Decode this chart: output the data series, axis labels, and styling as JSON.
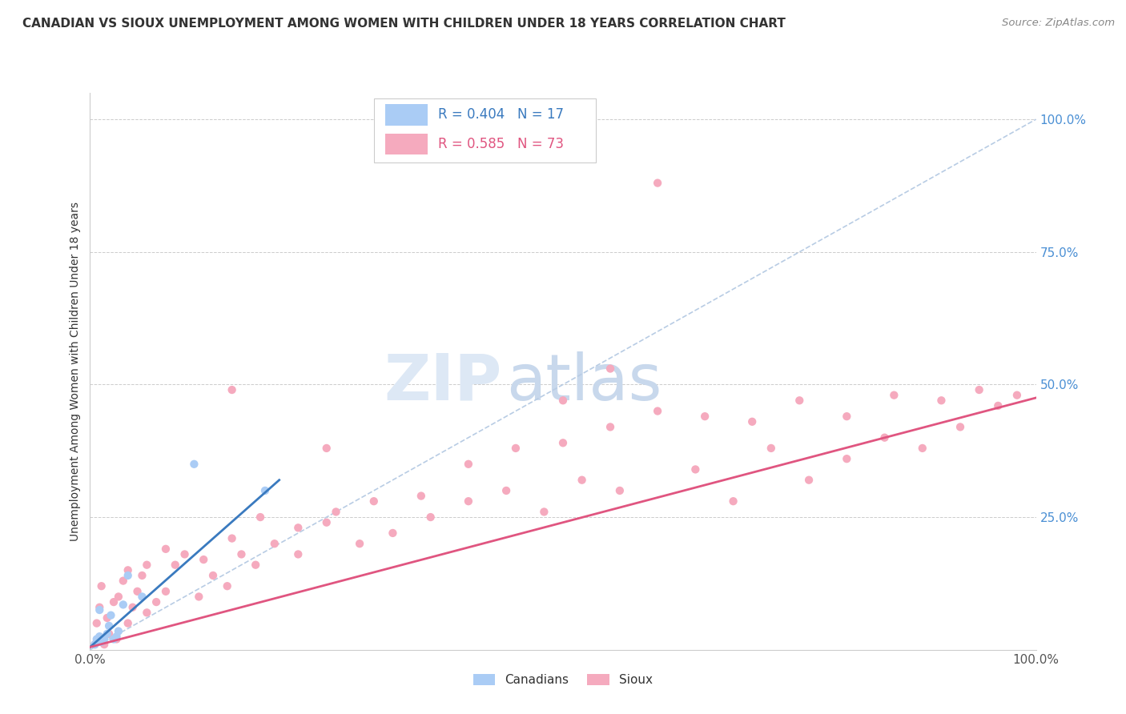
{
  "title": "CANADIAN VS SIOUX UNEMPLOYMENT AMONG WOMEN WITH CHILDREN UNDER 18 YEARS CORRELATION CHART",
  "source": "Source: ZipAtlas.com",
  "ylabel": "Unemployment Among Women with Children Under 18 years",
  "xlim": [
    0.0,
    1.0
  ],
  "ylim": [
    0.0,
    1.05
  ],
  "ytick_positions": [
    0.0,
    0.25,
    0.5,
    0.75,
    1.0
  ],
  "ytick_labels": [
    "",
    "25.0%",
    "50.0%",
    "75.0%",
    "100.0%"
  ],
  "xtick_positions": [
    0.0,
    1.0
  ],
  "xtick_labels": [
    "0.0%",
    "100.0%"
  ],
  "legend_canadian_r": "R = 0.404",
  "legend_canadian_n": "N = 17",
  "legend_sioux_r": "R = 0.585",
  "legend_sioux_n": "N = 73",
  "canadian_color": "#aaccf5",
  "sioux_color": "#f5aabe",
  "canadian_line_color": "#3a7abf",
  "sioux_line_color": "#e05580",
  "diagonal_color": "#b8cce4",
  "watermark_zip": "ZIP",
  "watermark_atlas": "atlas",
  "background_color": "#ffffff",
  "canadians_x": [
    0.005,
    0.007,
    0.01,
    0.01,
    0.012,
    0.015,
    0.018,
    0.02,
    0.022,
    0.025,
    0.028,
    0.03,
    0.035,
    0.04,
    0.055,
    0.11,
    0.185
  ],
  "canadians_y": [
    0.01,
    0.02,
    0.025,
    0.075,
    0.015,
    0.02,
    0.03,
    0.045,
    0.065,
    0.02,
    0.025,
    0.035,
    0.085,
    0.14,
    0.1,
    0.35,
    0.3
  ],
  "can_line_x0": 0.0,
  "can_line_x1": 0.2,
  "can_line_y0": 0.005,
  "can_line_y1": 0.32,
  "sioux_line_x0": 0.0,
  "sioux_line_x1": 1.0,
  "sioux_line_y0": 0.005,
  "sioux_line_y1": 0.475,
  "sioux_x": [
    0.005,
    0.007,
    0.01,
    0.012,
    0.015,
    0.018,
    0.02,
    0.025,
    0.028,
    0.03,
    0.035,
    0.04,
    0.045,
    0.05,
    0.055,
    0.06,
    0.07,
    0.08,
    0.09,
    0.1,
    0.115,
    0.13,
    0.145,
    0.16,
    0.175,
    0.195,
    0.22,
    0.25,
    0.285,
    0.32,
    0.36,
    0.4,
    0.44,
    0.48,
    0.52,
    0.56,
    0.6,
    0.64,
    0.68,
    0.72,
    0.76,
    0.8,
    0.84,
    0.88,
    0.92,
    0.96,
    0.04,
    0.06,
    0.08,
    0.12,
    0.15,
    0.18,
    0.22,
    0.26,
    0.3,
    0.35,
    0.4,
    0.45,
    0.5,
    0.55,
    0.6,
    0.65,
    0.7,
    0.75,
    0.8,
    0.85,
    0.9,
    0.94,
    0.98,
    0.15,
    0.25,
    0.5,
    0.55
  ],
  "sioux_y": [
    0.01,
    0.05,
    0.08,
    0.12,
    0.01,
    0.06,
    0.03,
    0.09,
    0.02,
    0.1,
    0.13,
    0.05,
    0.08,
    0.11,
    0.14,
    0.07,
    0.09,
    0.11,
    0.16,
    0.18,
    0.1,
    0.14,
    0.12,
    0.18,
    0.16,
    0.2,
    0.18,
    0.24,
    0.2,
    0.22,
    0.25,
    0.28,
    0.3,
    0.26,
    0.32,
    0.3,
    0.88,
    0.34,
    0.28,
    0.38,
    0.32,
    0.36,
    0.4,
    0.38,
    0.42,
    0.46,
    0.15,
    0.16,
    0.19,
    0.17,
    0.21,
    0.25,
    0.23,
    0.26,
    0.28,
    0.29,
    0.35,
    0.38,
    0.39,
    0.42,
    0.45,
    0.44,
    0.43,
    0.47,
    0.44,
    0.48,
    0.47,
    0.49,
    0.48,
    0.49,
    0.38,
    0.47,
    0.53
  ]
}
